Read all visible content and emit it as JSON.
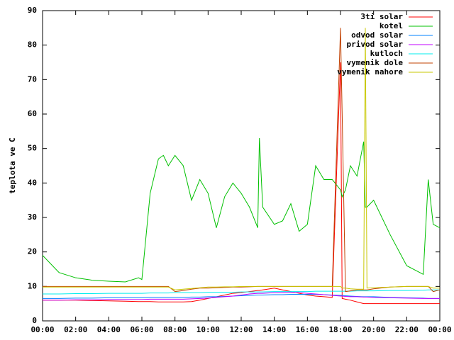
{
  "chart_data": {
    "type": "line",
    "ylabel": "teplota ve C",
    "x": [
      0,
      1,
      2,
      3,
      4,
      5,
      5.8,
      6,
      6.5,
      7,
      7.3,
      7.6,
      8,
      8.5,
      9,
      9.5,
      10,
      10.5,
      11,
      11.5,
      12,
      12.5,
      13,
      13.1,
      13.3,
      14,
      14.5,
      15,
      15.5,
      16,
      16.5,
      17,
      17.5,
      18,
      18.1,
      18.3,
      18.6,
      19,
      19.4,
      19.5,
      19.6,
      20,
      21,
      22,
      23,
      23.3,
      23.6,
      24
    ],
    "xlim": [
      0,
      24
    ],
    "xticks": [
      {
        "value": 0,
        "label": "00:00"
      },
      {
        "value": 2,
        "label": "02:00"
      },
      {
        "value": 4,
        "label": "04:00"
      },
      {
        "value": 6,
        "label": "06:00"
      },
      {
        "value": 8,
        "label": "08:00"
      },
      {
        "value": 10,
        "label": "10:00"
      },
      {
        "value": 12,
        "label": "12:00"
      },
      {
        "value": 14,
        "label": "14:00"
      },
      {
        "value": 16,
        "label": "16:00"
      },
      {
        "value": 18,
        "label": "18:00"
      },
      {
        "value": 20,
        "label": "20:00"
      },
      {
        "value": 22,
        "label": "22:00"
      },
      {
        "value": 24,
        "label": "00:00"
      }
    ],
    "ylim": [
      0,
      90
    ],
    "yticks": [
      0,
      10,
      20,
      30,
      40,
      50,
      60,
      70,
      80,
      90
    ],
    "grid": false,
    "legend": "top-right",
    "series": [
      {
        "name": "3ti solar",
        "color": "#ff0000",
        "values": [
          6,
          6,
          6,
          5.9,
          5.8,
          5.7,
          5.6,
          5.6,
          5.6,
          5.5,
          5.5,
          5.5,
          5.5,
          5.5,
          5.6,
          6,
          6.5,
          7,
          7.5,
          8,
          8.2,
          8.5,
          8.8,
          8.8,
          9,
          9.5,
          9,
          8.5,
          8,
          7.5,
          7.2,
          7,
          6.8,
          75,
          6.5,
          6.3,
          6,
          5.5,
          5,
          5,
          5,
          5,
          5,
          5,
          5,
          5,
          5,
          5
        ]
      },
      {
        "name": "kotel",
        "color": "#00c000",
        "values": [
          19,
          14,
          12.5,
          11.8,
          11.5,
          11.3,
          12.5,
          12,
          37,
          47,
          48,
          45,
          48,
          45,
          35,
          41,
          37,
          27,
          36,
          40,
          37,
          33,
          27,
          53,
          33,
          28,
          29,
          34,
          26,
          28,
          45,
          41,
          41,
          38,
          36,
          38,
          45,
          42,
          52,
          33,
          33,
          35,
          25,
          16,
          13.5,
          41,
          28,
          27
        ]
      },
      {
        "name": "odvod solar",
        "color": "#0080ff",
        "values": [
          6.5,
          6.5,
          6.6,
          6.6,
          6.7,
          6.7,
          6.7,
          6.7,
          6.8,
          6.8,
          6.8,
          6.8,
          6.8,
          6.8,
          6.9,
          6.9,
          7,
          7,
          7.1,
          7.2,
          7.3,
          7.4,
          7.5,
          7.5,
          7.5,
          7.6,
          7.6,
          7.7,
          7.7,
          7.7,
          7.7,
          7.6,
          7.5,
          7.4,
          7.4,
          7.3,
          7.2,
          7.1,
          7,
          7,
          7,
          7,
          6.8,
          6.7,
          6.6,
          6.5,
          6.5,
          6.5
        ]
      },
      {
        "name": "privod solar",
        "color": "#c000ff",
        "values": [
          6,
          6,
          6.1,
          6.1,
          6.2,
          6.2,
          6.2,
          6.2,
          6.3,
          6.3,
          6.3,
          6.3,
          6.3,
          6.3,
          6.4,
          6.5,
          6.6,
          6.8,
          7,
          7.2,
          7.5,
          7.8,
          8,
          8,
          8,
          8.2,
          8.2,
          8.3,
          8.2,
          8,
          7.8,
          7.6,
          7.4,
          7.2,
          7.2,
          7.1,
          7,
          7,
          6.9,
          6.9,
          6.9,
          6.8,
          6.7,
          6.6,
          6.5,
          6.5,
          6.5,
          6.5
        ]
      },
      {
        "name": "kutloch",
        "color": "#00eeee",
        "values": [
          7.8,
          7.8,
          7.9,
          7.9,
          8,
          8,
          8,
          8,
          8.1,
          8.1,
          8.1,
          8.1,
          8.2,
          8.2,
          8.2,
          8.2,
          8.3,
          8.3,
          8.3,
          8.3,
          8.4,
          8.4,
          8.4,
          8.4,
          8.4,
          8.5,
          8.5,
          8.5,
          8.5,
          8.5,
          8.6,
          8.6,
          8.6,
          8.6,
          8.6,
          8.6,
          8.6,
          8.7,
          8.7,
          8.7,
          8.7,
          8.7,
          8.8,
          8.8,
          8.9,
          9,
          9,
          9
        ]
      },
      {
        "name": "vymenik dole",
        "color": "#c04000",
        "values": [
          10,
          10,
          10,
          10,
          10,
          10,
          10,
          10,
          10,
          10,
          10,
          10,
          8.5,
          8.8,
          9.2,
          9.5,
          9.5,
          9.6,
          9.7,
          9.8,
          9.8,
          9.9,
          10,
          10,
          10,
          10,
          10,
          10,
          10,
          10,
          10,
          10,
          10,
          85,
          60,
          8.5,
          8.7,
          9,
          9,
          9,
          9,
          9.3,
          9.8,
          10,
          10,
          10,
          8.5,
          9
        ]
      },
      {
        "name": "vymenik nahore",
        "color": "#c8c800",
        "values": [
          9.8,
          9.8,
          9.8,
          9.8,
          9.8,
          9.8,
          9.8,
          9.8,
          9.8,
          9.8,
          9.8,
          9.8,
          9,
          9.2,
          9.4,
          9.6,
          9.8,
          9.8,
          9.9,
          9.9,
          10,
          10,
          10,
          10,
          10,
          10,
          10,
          10,
          10,
          10,
          10,
          10,
          10,
          10,
          9.5,
          9.5,
          9.3,
          9.2,
          9.2,
          85,
          9.5,
          9.6,
          9.8,
          10,
          10,
          10,
          9.5,
          9.5
        ]
      }
    ]
  }
}
